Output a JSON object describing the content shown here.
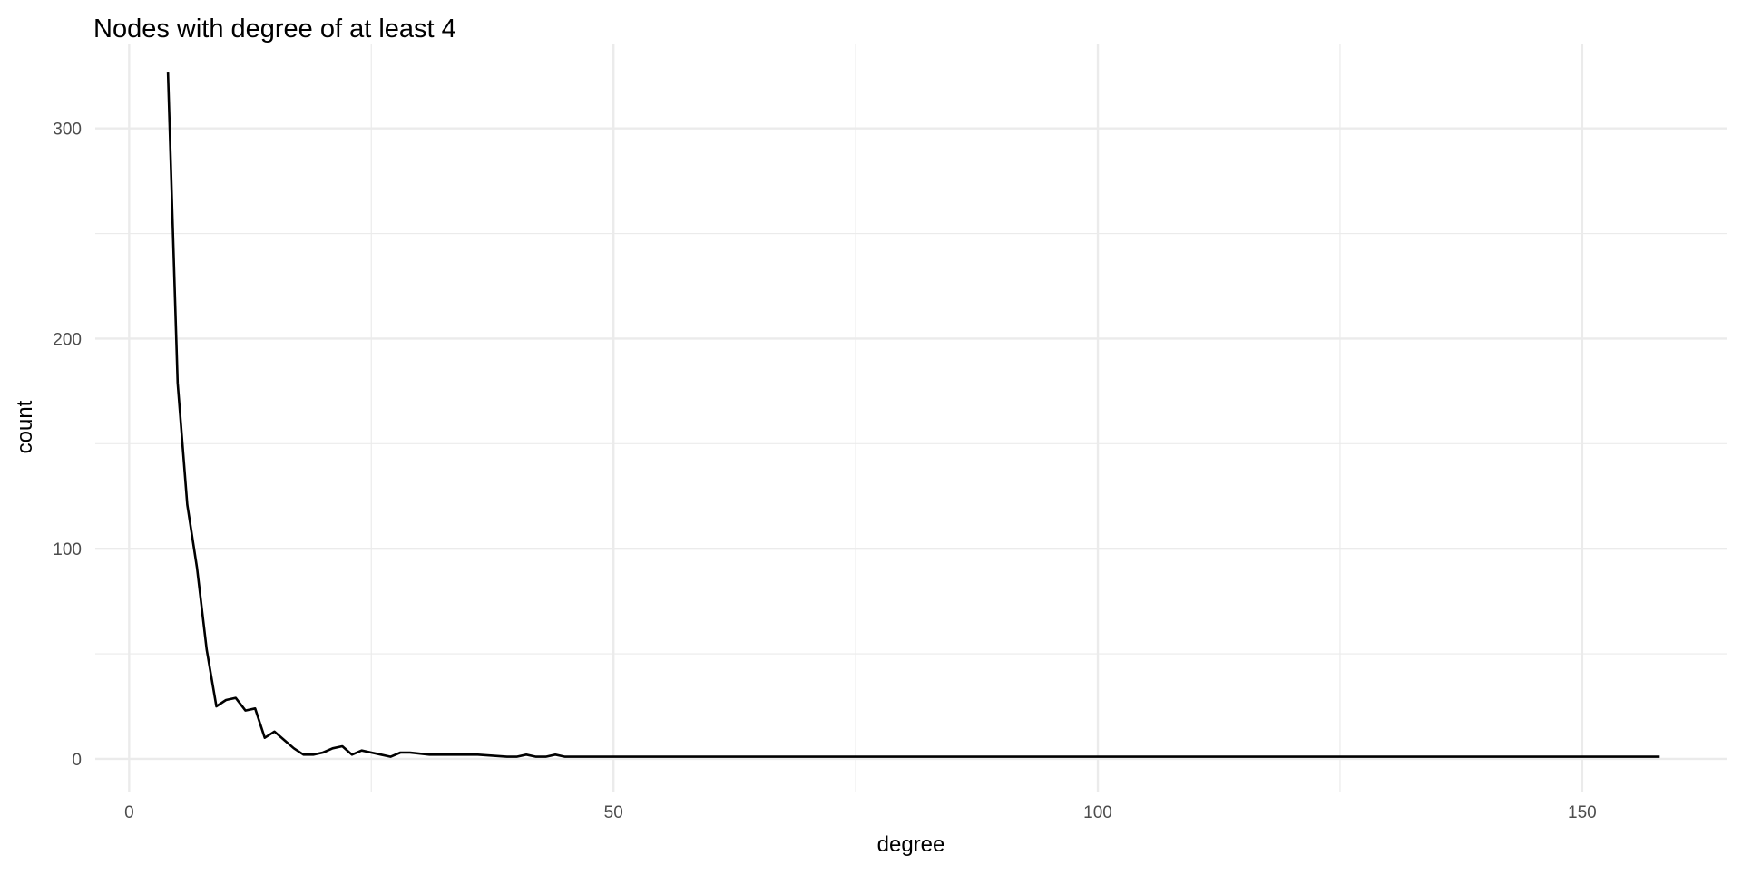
{
  "chart_data": {
    "type": "line",
    "title": "Nodes with degree of at least 4",
    "xlabel": "degree",
    "ylabel": "count",
    "xlim": [
      -3.5,
      165
    ],
    "ylim": [
      -16,
      340
    ],
    "x_ticks": [
      0,
      50,
      100,
      150
    ],
    "y_ticks": [
      0,
      100,
      200,
      300
    ],
    "x_minor": [
      25,
      75,
      125
    ],
    "y_minor": [
      50,
      150,
      250
    ],
    "grid": true,
    "line_color": "#000000",
    "grid_color": "#ebebeb",
    "x": [
      4,
      5,
      6,
      7,
      8,
      9,
      10,
      11,
      12,
      13,
      14,
      15,
      16,
      17,
      18,
      19,
      20,
      21,
      22,
      23,
      24,
      25,
      26,
      27,
      28,
      29,
      31,
      33,
      36,
      39,
      40,
      41,
      42,
      43,
      44,
      45,
      158
    ],
    "y": [
      327,
      179,
      121,
      91,
      52,
      25,
      28,
      29,
      23,
      24,
      10,
      13,
      9,
      5,
      2,
      2,
      3,
      5,
      6,
      2,
      4,
      3,
      2,
      1,
      3,
      3,
      2,
      2,
      2,
      1,
      1,
      2,
      1,
      1,
      2,
      1,
      1
    ]
  }
}
